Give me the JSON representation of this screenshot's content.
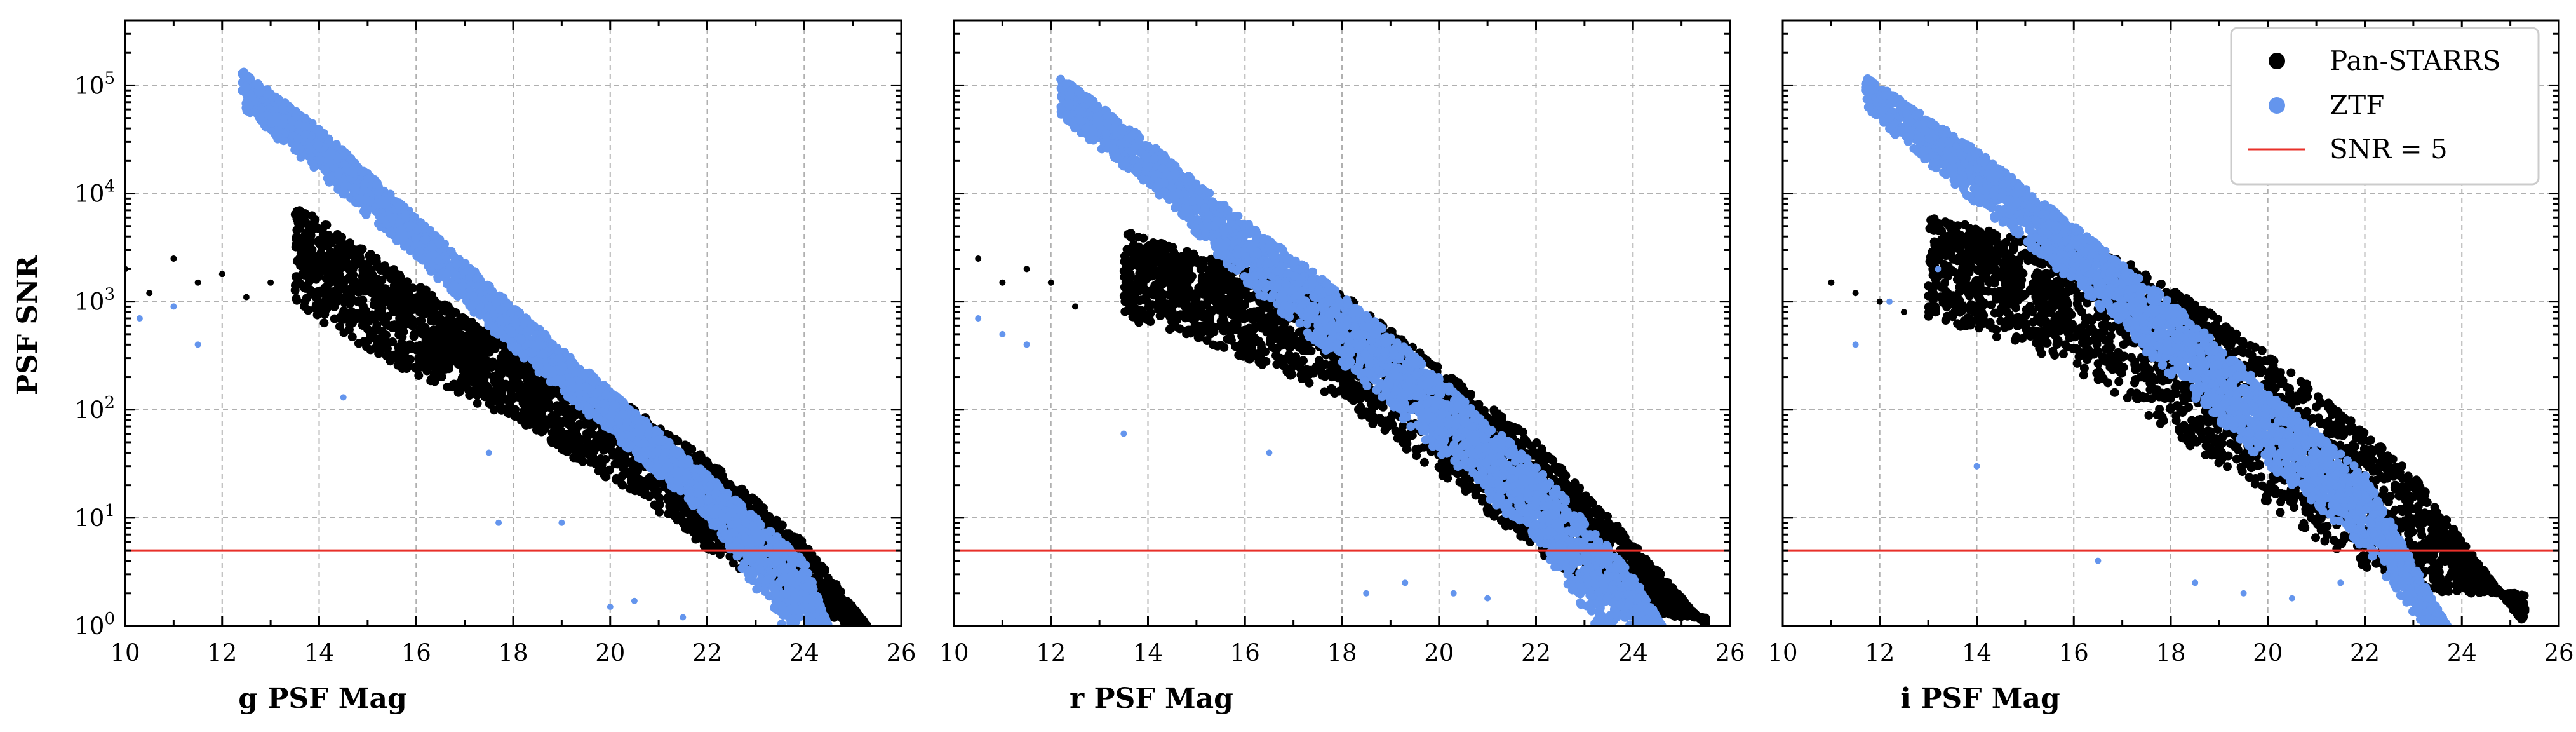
{
  "chart_data": [
    {
      "type": "scatter",
      "xlabel": "g PSF Mag",
      "ylabel": "PSF SNR",
      "xlim": [
        10,
        26
      ],
      "ylim": [
        1,
        400000
      ],
      "yscale": "log",
      "grid": true,
      "xticks": [
        "10",
        "12",
        "14",
        "16",
        "18",
        "20",
        "22",
        "24",
        "26"
      ],
      "yticks": [
        {
          "base": "10",
          "exp": "0"
        },
        {
          "base": "10",
          "exp": "1"
        },
        {
          "base": "10",
          "exp": "2"
        },
        {
          "base": "10",
          "exp": "3"
        },
        {
          "base": "10",
          "exp": "4"
        },
        {
          "base": "10",
          "exp": "5"
        }
      ],
      "series": [
        {
          "name": "Pan-STARRS",
          "color": "#000000",
          "upper_edge": [
            [
              13.5,
              8000
            ],
            [
              16,
              1500
            ],
            [
              18,
              350
            ],
            [
              20,
              140
            ],
            [
              22,
              35
            ],
            [
              24,
              6
            ],
            [
              25.3,
              1
            ]
          ],
          "lower_edge": [
            [
              13.5,
              900
            ],
            [
              16,
              200
            ],
            [
              18,
              80
            ],
            [
              20,
              22
            ],
            [
              22,
              5
            ],
            [
              24,
              1.5
            ],
            [
              25,
              1
            ]
          ],
          "outliers": [
            [
              10,
              2000
            ],
            [
              10.5,
              1200
            ],
            [
              11,
              2500
            ],
            [
              11.5,
              1500
            ],
            [
              12,
              1800
            ],
            [
              12.5,
              1100
            ],
            [
              13,
              1500
            ]
          ]
        },
        {
          "name": "ZTF",
          "color": "#6495ED",
          "upper_edge": [
            [
              12.4,
              140000
            ],
            [
              14,
              40000
            ],
            [
              16,
              6000
            ],
            [
              18,
              900
            ],
            [
              20,
              150
            ],
            [
              22,
              25
            ],
            [
              24,
              4
            ],
            [
              24.5,
              1
            ]
          ],
          "lower_edge": [
            [
              12.4,
              60000
            ],
            [
              14,
              15000
            ],
            [
              16,
              2500
            ],
            [
              18,
              350
            ],
            [
              20,
              60
            ],
            [
              22,
              10
            ],
            [
              23.5,
              1
            ]
          ],
          "outliers": [
            [
              10.3,
              700
            ],
            [
              11,
              900
            ],
            [
              11.5,
              400
            ],
            [
              14.5,
              130
            ],
            [
              17.5,
              40
            ],
            [
              17.7,
              9
            ],
            [
              19,
              9
            ],
            [
              20,
              1.5
            ],
            [
              20.5,
              1.7
            ],
            [
              21.5,
              1.2
            ]
          ]
        }
      ]
    },
    {
      "type": "scatter",
      "xlabel": "r PSF Mag",
      "ylabel": "",
      "xlim": [
        10,
        26
      ],
      "ylim": [
        1,
        400000
      ],
      "yscale": "log",
      "grid": true,
      "xticks": [
        "10",
        "12",
        "14",
        "16",
        "18",
        "20",
        "22",
        "24",
        "26"
      ],
      "series": [
        {
          "name": "Pan-STARRS",
          "color": "#000000",
          "upper_edge": [
            [
              13.5,
              4500
            ],
            [
              16,
              2000
            ],
            [
              18,
              1200
            ],
            [
              20,
              250
            ],
            [
              22,
              50
            ],
            [
              24,
              6
            ],
            [
              25.5,
              1
            ]
          ],
          "lower_edge": [
            [
              13.5,
              700
            ],
            [
              16,
              300
            ],
            [
              18,
              120
            ],
            [
              20,
              25
            ],
            [
              22,
              5
            ],
            [
              24,
              1.2
            ]
          ],
          "outliers": [
            [
              10.5,
              2500
            ],
            [
              11,
              1500
            ],
            [
              11.5,
              2000
            ],
            [
              12,
              1500
            ],
            [
              12.5,
              900
            ]
          ]
        },
        {
          "name": "ZTF",
          "color": "#6495ED",
          "upper_edge": [
            [
              12.2,
              120000
            ],
            [
              14,
              30000
            ],
            [
              16,
              5500
            ],
            [
              18,
              1200
            ],
            [
              20,
              200
            ],
            [
              22,
              30
            ],
            [
              24,
              3
            ],
            [
              24.6,
              1
            ]
          ],
          "lower_edge": [
            [
              12.2,
              50000
            ],
            [
              14,
              12000
            ],
            [
              16,
              1500
            ],
            [
              18,
              250
            ],
            [
              20,
              40
            ],
            [
              22,
              6
            ],
            [
              23.2,
              1
            ]
          ],
          "outliers": [
            [
              10.5,
              700
            ],
            [
              11,
              500
            ],
            [
              11.5,
              400
            ],
            [
              13.5,
              60
            ],
            [
              16.5,
              40
            ],
            [
              18.5,
              2
            ],
            [
              19.3,
              2.5
            ],
            [
              20.3,
              2
            ],
            [
              21,
              1.8
            ]
          ]
        }
      ]
    },
    {
      "type": "scatter",
      "xlabel": "i PSF Mag",
      "ylabel": "",
      "xlim": [
        10,
        26
      ],
      "ylim": [
        1,
        400000
      ],
      "yscale": "log",
      "grid": true,
      "xticks": [
        "10",
        "12",
        "14",
        "16",
        "18",
        "20",
        "22",
        "24",
        "26"
      ],
      "series": [
        {
          "name": "Pan-STARRS",
          "color": "#000000",
          "upper_edge": [
            [
              13,
              6000
            ],
            [
              15,
              4000
            ],
            [
              17,
              2500
            ],
            [
              19,
              700
            ],
            [
              21,
              150
            ],
            [
              23,
              25
            ],
            [
              25.3,
              1
            ]
          ],
          "lower_edge": [
            [
              13,
              700
            ],
            [
              15,
              400
            ],
            [
              17,
              120
            ],
            [
              19,
              30
            ],
            [
              21,
              6
            ],
            [
              23,
              2
            ]
          ],
          "outliers": [
            [
              11,
              1500
            ],
            [
              11.5,
              1200
            ],
            [
              12,
              1000
            ],
            [
              12.5,
              800
            ]
          ]
        },
        {
          "name": "ZTF",
          "color": "#6495ED",
          "upper_edge": [
            [
              11.7,
              120000
            ],
            [
              14,
              25000
            ],
            [
              16,
              5000
            ],
            [
              18,
              1000
            ],
            [
              20,
              150
            ],
            [
              22,
              25
            ],
            [
              23.7,
              1
            ]
          ],
          "lower_edge": [
            [
              11.7,
              60000
            ],
            [
              14,
              8000
            ],
            [
              16,
              1500
            ],
            [
              18,
              200
            ],
            [
              20,
              30
            ],
            [
              22,
              5
            ],
            [
              23.2,
              1
            ]
          ],
          "outliers": [
            [
              11.5,
              400
            ],
            [
              12.2,
              1000
            ],
            [
              13.2,
              2000
            ],
            [
              14,
              30
            ],
            [
              16.5,
              4
            ],
            [
              18.5,
              2.5
            ],
            [
              19.5,
              2
            ],
            [
              20.5,
              1.8
            ],
            [
              21.5,
              2.5
            ]
          ]
        }
      ]
    }
  ],
  "legend": {
    "position": "top-right",
    "entries": [
      {
        "label": "Pan-STARRS",
        "kind": "marker",
        "color": "#000000"
      },
      {
        "label": "ZTF",
        "kind": "marker",
        "color": "#6495ED"
      },
      {
        "label": "SNR = 5",
        "kind": "line",
        "color": "#E8302A"
      }
    ]
  },
  "reference_line": {
    "label": "SNR = 5",
    "y": 5,
    "color": "#E8302A"
  },
  "colors": {
    "panstarrs": "#000000",
    "ztf": "#6495ED",
    "snr_line": "#E8302A",
    "grid": "#b0b0b0"
  }
}
